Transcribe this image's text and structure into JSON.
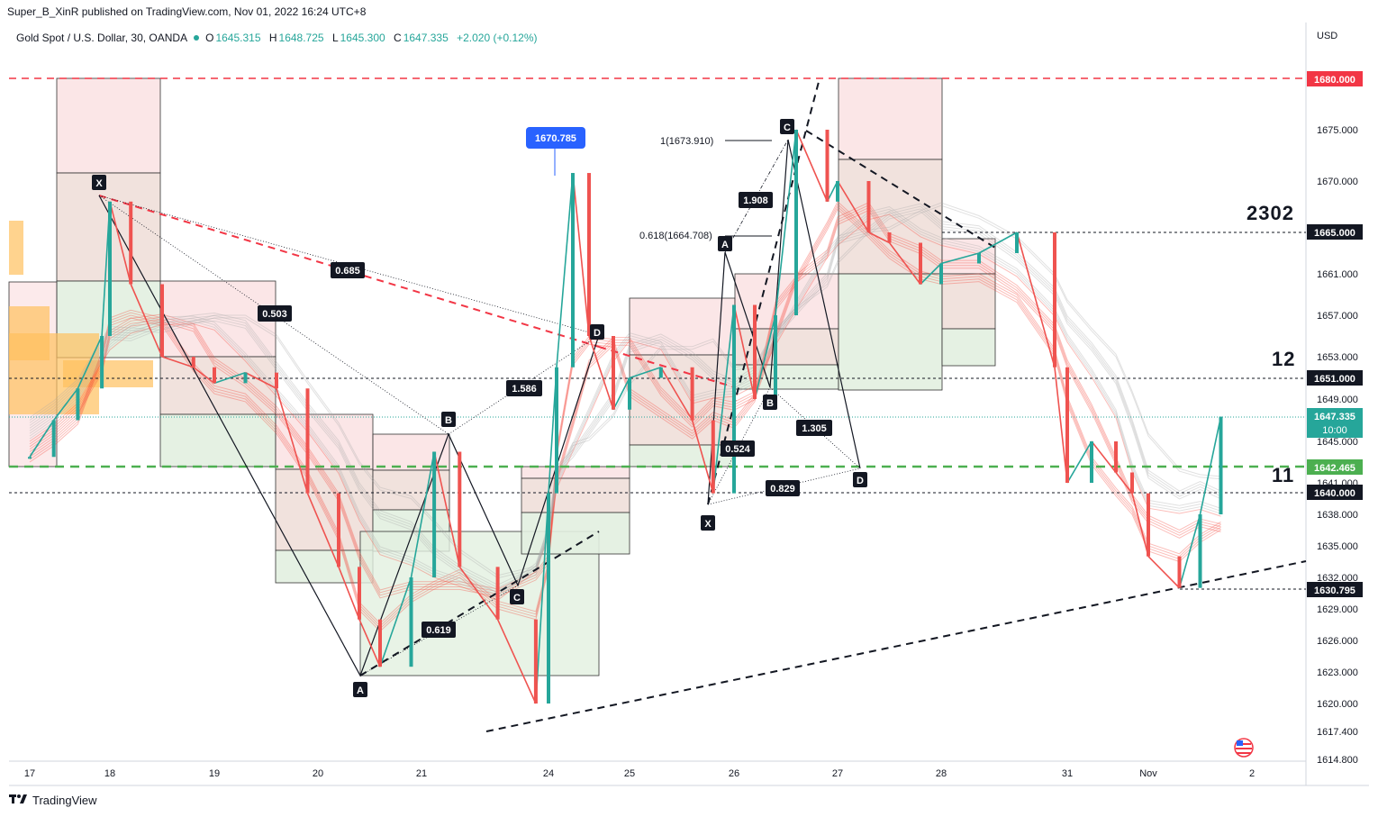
{
  "header": {
    "publish_line": "Super_B_XinR published on TradingView.com, Nov 01, 2022 16:24 UTC+8",
    "symbol": "Gold Spot / U.S. Dollar, 30, OANDA",
    "o_label": "O",
    "o_value": "1645.315",
    "h_label": "H",
    "h_value": "1648.725",
    "l_label": "L",
    "l_value": "1645.300",
    "c_label": "C",
    "c_value": "1647.335",
    "change": "+2.020 (+0.12%)",
    "currency": "USD"
  },
  "footer": {
    "brand": "TradingView"
  },
  "chart_data": {
    "type": "line",
    "symbol": "XAUUSD",
    "timeframe": "30",
    "ylim": [
      1614.8,
      1683.5
    ],
    "y_ticks": [
      1614.8,
      1617.4,
      1620.0,
      1623.0,
      1626.0,
      1629.0,
      1632.0,
      1635.0,
      1638.0,
      1641.0,
      1645.0,
      1649.0,
      1653.0,
      1657.0,
      1661.0,
      1665.0,
      1670.0,
      1675.0,
      1680.0
    ],
    "y_tick_labels": [
      "1614.800",
      "1617.400",
      "1620.000",
      "1623.000",
      "1626.000",
      "1629.000",
      "1632.000",
      "1635.000",
      "1638.000",
      "1641.000",
      "1645.000",
      "1649.000",
      "1653.000",
      "1657.000",
      "1661.000",
      "1665.000",
      "1670.000",
      "1675.000",
      "1680.000"
    ],
    "x_ticks": [
      "17",
      "18",
      "19",
      "20",
      "21",
      "24",
      "25",
      "26",
      "27",
      "28",
      "31",
      "Nov",
      "2"
    ],
    "x_tick_positions": [
      0,
      1,
      2,
      3,
      4,
      5,
      6,
      7,
      8,
      9,
      10,
      11,
      12
    ],
    "x": [
      0.0,
      0.3,
      0.6,
      0.9,
      1.0,
      1.2,
      1.5,
      1.8,
      2.0,
      2.3,
      2.6,
      2.9,
      3.2,
      3.4,
      3.6,
      3.9,
      4.1,
      4.3,
      4.6,
      4.9,
      5.0,
      5.1,
      5.3,
      5.5,
      5.8,
      6.0,
      6.3,
      6.6,
      6.8,
      7.0,
      7.2,
      7.4,
      7.6,
      7.9,
      8.0,
      8.3,
      8.5,
      8.8,
      9.0,
      9.3,
      9.6,
      9.9,
      10.0,
      10.3,
      10.6,
      10.8,
      11.0,
      11.3,
      11.5,
      11.7
    ],
    "series": [
      {
        "values": [
          1643.5,
          1647.0,
          1650.0,
          1655.0,
          1668.0,
          1660.0,
          1653.0,
          1652.0,
          1650.5,
          1651.5,
          1650.0,
          1640.0,
          1633.0,
          1628.0,
          1623.5,
          1632.0,
          1644.0,
          1633.0,
          1628.0,
          1620.0,
          1640.0,
          1652.0,
          1670.785,
          1655.0,
          1648.0,
          1651.0,
          1652.0,
          1647.0,
          1640.0,
          1658.0,
          1649.0,
          1657.0,
          1675.0,
          1668.0,
          1670.0,
          1665.0,
          1664.0,
          1660.0,
          1662.0,
          1663.0,
          1665.0,
          1652.0,
          1641.0,
          1645.0,
          1642.0,
          1640.0,
          1634.0,
          1631.0,
          1638.0,
          1647.335
        ]
      }
    ],
    "price_labels": {
      "level_1680": "1680.000",
      "level_1665": "1665.000",
      "level_1651": "1651.000",
      "current": "1647.335",
      "countdown": "10:00",
      "level_1642": "1642.465",
      "level_1640": "1640.000",
      "level_1630": "1630.795"
    },
    "callout_high": "1670.785",
    "horizontal_levels": [
      1680.0,
      1665.0,
      1651.0,
      1642.465,
      1640.0,
      1630.795
    ],
    "big_labels": {
      "l2302": "2302",
      "l12": "12",
      "l11": "11"
    },
    "harmonic_labels": {
      "X1": "X",
      "A1": "A",
      "B1": "B",
      "C1": "C",
      "D1": "D",
      "X2": "X",
      "A2": "A",
      "B2": "B",
      "C2": "C",
      "D2": "D"
    },
    "ratios": {
      "r685": "0.685",
      "r503": "0.503",
      "r1586": "1.586",
      "r619": "0.619",
      "r1908": "1.908",
      "r524": "0.524",
      "r1305": "1.305",
      "r829": "0.829"
    },
    "fib_labels": {
      "f1": "1(1673.910)",
      "f618": "0.618(1664.708)"
    },
    "colors": {
      "up": "#26a69a",
      "down": "#ef5350",
      "red_level": "#f23645",
      "green_level": "#4caf50",
      "callout": "#2962ff",
      "ribbon_red": "#f44336",
      "ribbon_green": "#00e676"
    }
  }
}
